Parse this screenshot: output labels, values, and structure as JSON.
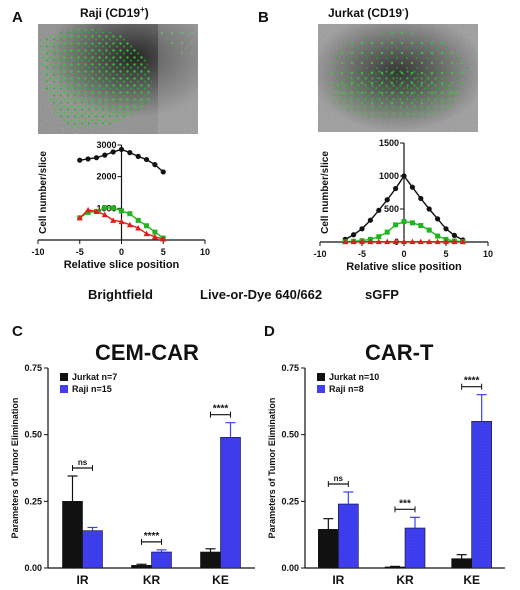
{
  "panels": {
    "A": {
      "letter": "A",
      "title": "Raji (CD19",
      "title_sup": "+",
      "title_end": ")"
    },
    "B": {
      "letter": "B",
      "title": "Jurkat (CD19",
      "title_sup": "-",
      "title_end": ")"
    },
    "C": {
      "letter": "C",
      "title": "CEM-CAR"
    },
    "D": {
      "letter": "D",
      "title": "CAR-T"
    }
  },
  "legend": {
    "brightfield": {
      "label": "Brightfield",
      "color": "#111111"
    },
    "dye": {
      "label": "Live-or-Dye 640/662",
      "color": "#e51b1b"
    },
    "gfp": {
      "label": "sGFP",
      "color": "#1fb51f"
    }
  },
  "colors": {
    "jurkat": "#111111",
    "raji": "#3f3ff0"
  },
  "chart_data": [
    {
      "id": "A",
      "type": "line",
      "xlabel": "Relative slice position",
      "ylabel": "Cell number/slice",
      "xlim": [
        -10,
        10
      ],
      "ylim": [
        0,
        3000
      ],
      "xticks": [
        -10,
        -5,
        0,
        5,
        10
      ],
      "yticks_labeled": [
        1000,
        2000,
        3000
      ],
      "series": [
        {
          "name": "Brightfield",
          "x": [
            -5,
            -4,
            -3,
            -2,
            -1,
            0,
            1,
            2,
            3,
            4,
            5
          ],
          "y": [
            2520,
            2560,
            2600,
            2680,
            2780,
            2860,
            2760,
            2640,
            2540,
            2380,
            2150
          ]
        },
        {
          "name": "sGFP",
          "x": [
            -5,
            -4,
            -3,
            -2,
            -1,
            0,
            1,
            2,
            3,
            4,
            5
          ],
          "y": [
            700,
            870,
            900,
            1020,
            1010,
            920,
            830,
            620,
            450,
            250,
            60
          ]
        },
        {
          "name": "Live-or-Dye 640/662",
          "x": [
            -5,
            -4,
            -3,
            -2,
            -1,
            0,
            1,
            2,
            3,
            4,
            5
          ],
          "y": [
            700,
            950,
            900,
            800,
            620,
            580,
            480,
            380,
            200,
            100,
            30
          ]
        }
      ]
    },
    {
      "id": "B",
      "type": "line",
      "xlabel": "Relative slice position",
      "ylabel": "Cell number/slice",
      "xlim": [
        -10,
        10
      ],
      "ylim": [
        0,
        1500
      ],
      "xticks": [
        -10,
        -5,
        0,
        5,
        10
      ],
      "yticks": [
        0,
        500,
        1000,
        1500
      ],
      "series": [
        {
          "name": "Brightfield",
          "x": [
            -7,
            -6,
            -5,
            -4,
            -3,
            -2,
            -1,
            0,
            1,
            2,
            3,
            4,
            5,
            6,
            7
          ],
          "y": [
            40,
            110,
            200,
            330,
            480,
            640,
            810,
            1000,
            830,
            660,
            500,
            350,
            200,
            100,
            30
          ]
        },
        {
          "name": "sGFP",
          "x": [
            -7,
            -6,
            -5,
            -4,
            -3,
            -2,
            -1,
            0,
            1,
            2,
            3,
            4,
            5,
            6,
            7
          ],
          "y": [
            5,
            10,
            20,
            40,
            80,
            150,
            260,
            310,
            290,
            250,
            180,
            90,
            40,
            15,
            5
          ]
        },
        {
          "name": "Live-or-Dye 640/662",
          "x": [
            -7,
            -6,
            -5,
            -4,
            -3,
            -2,
            -1,
            0,
            1,
            2,
            3,
            4,
            5,
            6,
            7
          ],
          "y": [
            5,
            5,
            5,
            5,
            5,
            5,
            5,
            5,
            5,
            5,
            5,
            5,
            5,
            5,
            5
          ]
        }
      ]
    },
    {
      "id": "C",
      "type": "bar",
      "title": "CEM-CAR",
      "ylabel": "Parameters of Tumor Elimination",
      "categories": [
        "IR",
        "KR",
        "KE"
      ],
      "ylim": [
        0,
        0.75
      ],
      "yticks": [
        "0.00",
        "0.25",
        "0.50",
        "0.75"
      ],
      "series": [
        {
          "name": "Jurkat  n=7",
          "values": [
            0.25,
            0.01,
            0.06
          ],
          "errors": [
            0.095,
            0.004,
            0.012
          ]
        },
        {
          "name": "Raji  n=15",
          "values": [
            0.14,
            0.06,
            0.49
          ],
          "errors": [
            0.012,
            0.008,
            0.055
          ]
        }
      ],
      "significance": [
        "ns",
        "****",
        "****"
      ]
    },
    {
      "id": "D",
      "type": "bar",
      "title": "CAR-T",
      "ylabel": "Parameters of Tumor Elimination",
      "categories": [
        "IR",
        "KR",
        "KE"
      ],
      "ylim": [
        0,
        0.75
      ],
      "yticks": [
        "0.00",
        "0.25",
        "0.50",
        "0.75"
      ],
      "series": [
        {
          "name": "Jurkat  n=10",
          "values": [
            0.145,
            0.004,
            0.035
          ],
          "errors": [
            0.04,
            0.002,
            0.015
          ]
        },
        {
          "name": "Raji  n=8",
          "values": [
            0.24,
            0.15,
            0.55
          ],
          "errors": [
            0.045,
            0.04,
            0.1
          ]
        }
      ],
      "significance": [
        "ns",
        "***",
        "****"
      ]
    }
  ]
}
